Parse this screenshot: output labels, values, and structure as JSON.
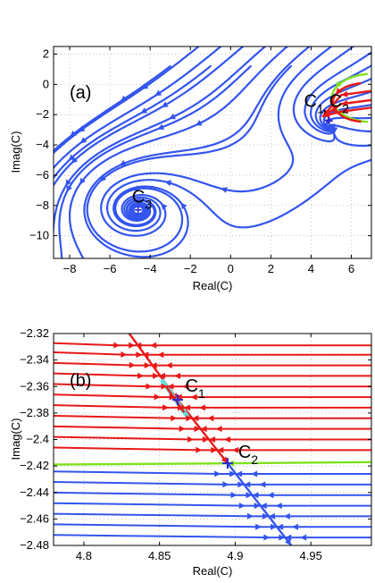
{
  "colors": {
    "blue": "#3355ee",
    "red": "#e81818",
    "green": "#7ee21c",
    "cyan": "#66e0e0",
    "marker": "#2a2ad0",
    "grid": "#b0b0b0"
  },
  "chart_data": [
    {
      "type": "streamplot",
      "panel_label": "(a)",
      "xlabel": "Real(C)",
      "ylabel": "Imag(C)",
      "xlim": [
        -8.8,
        7
      ],
      "ylim": [
        -11.5,
        2.5
      ],
      "xticks": [
        -8,
        -6,
        -4,
        -2,
        0,
        2,
        4,
        6
      ],
      "yticks": [
        2,
        0,
        -2,
        -4,
        -6,
        -8,
        -10
      ],
      "grid": true,
      "annotations": [
        {
          "text": "C",
          "sub": "1",
          "x": 3.65,
          "y": -1.5
        },
        {
          "text": ",",
          "sub": "",
          "x": 4.55,
          "y": -1.8
        },
        {
          "text": "C",
          "sub": "2",
          "x": 4.9,
          "y": -1.5
        },
        {
          "text": "C",
          "sub": "3",
          "x": -4.9,
          "y": -7.8
        }
      ],
      "fixed_points": [
        {
          "label": "C3",
          "x": -4.6,
          "y": -8.3
        },
        {
          "label": "C1",
          "x": 4.86,
          "y": -2.37
        },
        {
          "label": "C2",
          "x": 4.9,
          "y": -2.42
        }
      ]
    },
    {
      "type": "streamplot",
      "panel_label": "(b)",
      "xlabel": "Real(C)",
      "ylabel": "Imag(C)",
      "xlim": [
        4.78,
        4.99
      ],
      "ylim": [
        -2.48,
        -2.32
      ],
      "xticks": [
        4.8,
        4.85,
        4.9,
        4.95
      ],
      "yticks": [
        -2.32,
        -2.34,
        -2.36,
        -2.38,
        -2.4,
        -2.42,
        -2.44,
        -2.46,
        -2.48
      ],
      "grid": true,
      "annotations": [
        {
          "text": "C",
          "sub": "1",
          "x": 4.867,
          "y": -2.364
        },
        {
          "text": "C",
          "sub": "2",
          "x": 4.902,
          "y": -2.414
        }
      ],
      "fixed_points": [
        {
          "label": "C1",
          "x": 4.862,
          "y": -2.37
        },
        {
          "label": "C2",
          "x": 4.895,
          "y": -2.418
        }
      ]
    }
  ]
}
